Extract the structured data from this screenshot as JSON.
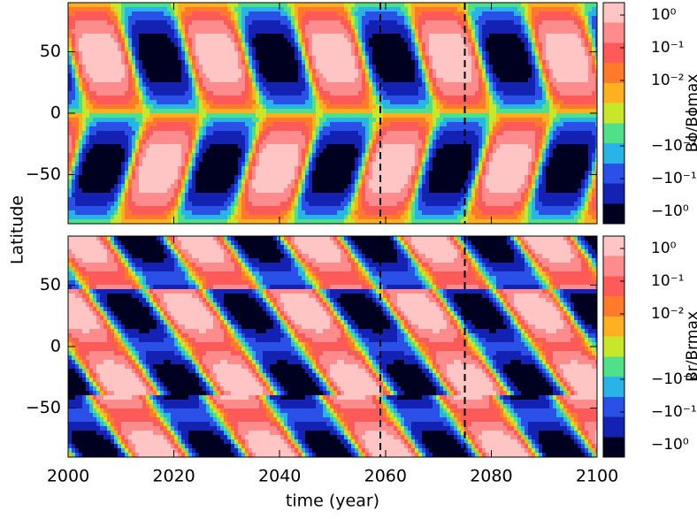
{
  "chart_data": [
    {
      "type": "contour",
      "colorbar_label": "Bϕ/Bϕmax",
      "colors": [
        "#ffc4c4",
        "#ff8c8c",
        "#ff5a5a",
        "#ff7a2a",
        "#ffb020",
        "#c8e62a",
        "#50e08a",
        "#28b4e6",
        "#2a50e8",
        "#1422b4",
        "#000020"
      ],
      "cbar_ticks": [
        {
          "value": 1,
          "label": "10⁰"
        },
        {
          "value": 0.1,
          "label": "10⁻¹"
        },
        {
          "value": 0.01,
          "label": "10⁻²"
        },
        {
          "value": -0.01,
          "label": "−10⁻²"
        },
        {
          "value": -0.1,
          "label": "−10⁻¹"
        },
        {
          "value": -1,
          "label": "−10⁰"
        }
      ],
      "xlim": [
        2000,
        2100
      ],
      "ylim": [
        -90,
        90
      ],
      "yticks": [
        {
          "value": -50,
          "label": "−50"
        },
        0,
        50
      ],
      "vlines": [
        2059,
        2075
      ]
    },
    {
      "type": "contour",
      "colorbar_label": "Br/Brmax",
      "colors": [
        "#ffc4c4",
        "#ff8c8c",
        "#ff5a5a",
        "#ff7a2a",
        "#ffb020",
        "#c8e62a",
        "#50e08a",
        "#28b4e6",
        "#2a50e8",
        "#1422b4",
        "#000020"
      ],
      "cbar_ticks": [
        {
          "value": 1,
          "label": "10⁰"
        },
        {
          "value": 0.1,
          "label": "10⁻¹"
        },
        {
          "value": 0.01,
          "label": "10⁻²"
        },
        {
          "value": -0.01,
          "label": "−10⁻²"
        },
        {
          "value": -0.1,
          "label": "−10⁻¹"
        },
        {
          "value": -1,
          "label": "−10⁰"
        }
      ],
      "xlim": [
        2000,
        2100
      ],
      "ylim": [
        -90,
        90
      ],
      "xticks": [
        2000,
        2020,
        2040,
        2060,
        2080,
        2100
      ],
      "yticks": [
        {
          "value": -50,
          "label": "−50"
        },
        0,
        50
      ],
      "vlines": [
        2059,
        2075
      ],
      "xlabel": "time (year)",
      "ylabel": "Latitude"
    }
  ]
}
